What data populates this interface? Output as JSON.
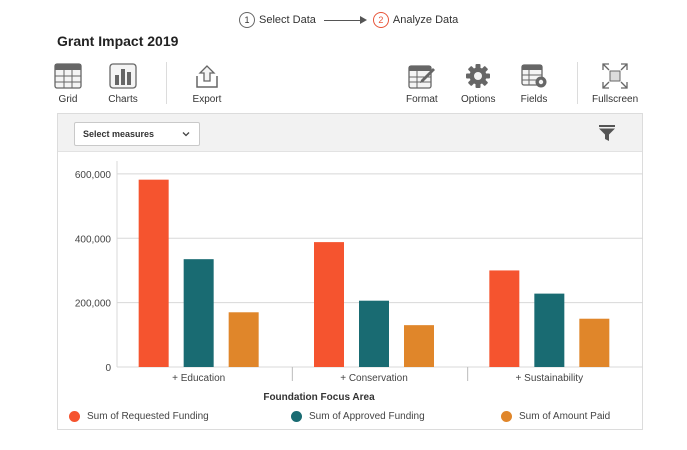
{
  "steps": [
    {
      "num": "1",
      "label": "Select Data"
    },
    {
      "num": "2",
      "label": "Analyze Data"
    }
  ],
  "title": "Grant Impact 2019",
  "toolbar": {
    "grid": "Grid",
    "charts": "Charts",
    "export": "Export",
    "format": "Format",
    "options": "Options",
    "fields": "Fields",
    "fullscreen": "Fullscreen"
  },
  "controls": {
    "select_measures": "Select measures"
  },
  "colors": {
    "requested": "#f5542f",
    "approved": "#196b72",
    "paid": "#e0862a",
    "active_step": "#e8553a"
  },
  "chart_data": {
    "type": "bar",
    "categories": [
      "+ Education",
      "+ Conservation",
      "+ Sustainability"
    ],
    "series": [
      {
        "name": "Sum of Requested Funding",
        "values": [
          582000,
          388000,
          300000
        ]
      },
      {
        "name": "Sum of Approved Funding",
        "values": [
          335000,
          206000,
          228000
        ]
      },
      {
        "name": "Sum of Amount Paid",
        "values": [
          170000,
          130000,
          150000
        ]
      }
    ],
    "xlabel": "Foundation Focus Area",
    "ylabel": "",
    "ylim": [
      0,
      640000
    ],
    "yticks": [
      0,
      200000,
      400000,
      600000
    ],
    "ytick_labels": [
      "0",
      "200,000",
      "400,000",
      "600,000"
    ],
    "grid": true,
    "legend_position": "bottom"
  }
}
